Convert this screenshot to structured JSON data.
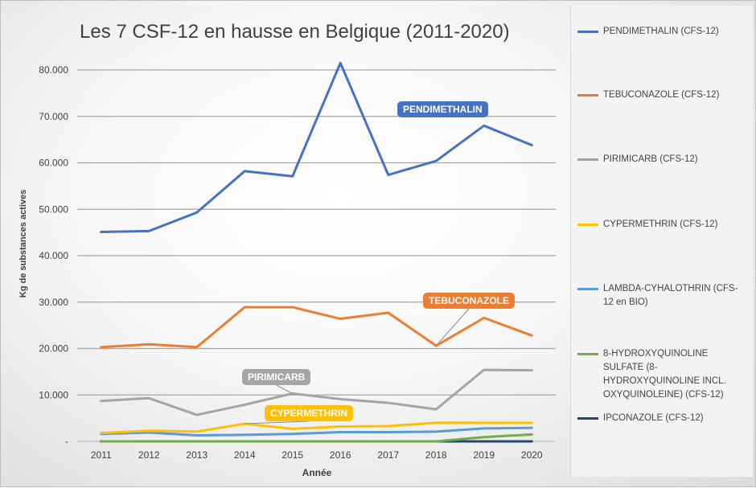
{
  "chart_data": {
    "type": "line",
    "title": "Les 7 CSF-12 en hausse en Belgique (2011-2020)",
    "xlabel": "Année",
    "ylabel": "Kg de substances actives",
    "categories": [
      "2011",
      "2012",
      "2013",
      "2014",
      "2015",
      "2016",
      "2017",
      "2018",
      "2019",
      "2020"
    ],
    "ylim": [
      0,
      80000
    ],
    "yticks": [
      {
        "value": 0,
        "label": "-"
      },
      {
        "value": 10000,
        "label": "10.000"
      },
      {
        "value": 20000,
        "label": "20.000"
      },
      {
        "value": 30000,
        "label": "30.000"
      },
      {
        "value": 40000,
        "label": "40.000"
      },
      {
        "value": 50000,
        "label": "50.000"
      },
      {
        "value": 60000,
        "label": "60.000"
      },
      {
        "value": 70000,
        "label": "70.000"
      },
      {
        "value": 80000,
        "label": "80.000"
      }
    ],
    "grid": true,
    "legend": "right",
    "series": [
      {
        "name": "PENDIMETHALIN (CFS-12)",
        "color": "#4472C4",
        "values": [
          45100,
          45300,
          49300,
          58200,
          57100,
          81500,
          57400,
          60400,
          68000,
          63800
        ]
      },
      {
        "name": "TEBUCONAZOLE (CFS-12)",
        "color": "#ED7D31",
        "values": [
          20300,
          20900,
          20300,
          28900,
          28900,
          26400,
          27700,
          20600,
          26600,
          22800
        ]
      },
      {
        "name": "PIRIMICARB (CFS-12)",
        "color": "#A5A5A5",
        "values": [
          8700,
          9300,
          5700,
          7900,
          10300,
          9100,
          8300,
          6900,
          15400,
          15300
        ]
      },
      {
        "name": "CYPERMETHRIN (CFS-12)",
        "color": "#FFC000",
        "values": [
          1800,
          2300,
          2100,
          3800,
          2700,
          3200,
          3300,
          4000,
          4000,
          4000
        ]
      },
      {
        "name": "LAMBDA-CYHALOTHRIN (CFS-12 en BIO)",
        "color": "#5B9BD5",
        "values": [
          1600,
          1900,
          1300,
          1400,
          1600,
          2000,
          2000,
          2100,
          2800,
          2900
        ]
      },
      {
        "name": "8-HYDROXYQUINOLINE SULFATE (8-HYDROXYQUINOLINE INCL. OXYQUINOLEINE) (CFS-12)",
        "color": "#70AD47",
        "values": [
          0,
          0,
          0,
          0,
          0,
          0,
          0,
          0,
          900,
          1500
        ]
      },
      {
        "name": "IPCONAZOLE (CFS-12)",
        "color": "#264478",
        "values": [
          0,
          0,
          0,
          0,
          0,
          0,
          0,
          0,
          0,
          0
        ]
      }
    ],
    "annotations": [
      {
        "text": "PENDIMETHALIN",
        "color": "#4472C4"
      },
      {
        "text": "TEBUCONAZOLE",
        "color": "#ED7D31",
        "pointer_x": "2018",
        "pointer_y": 20600
      },
      {
        "text": "PIRIMICARB",
        "color": "#A5A5A5",
        "pointer_x": "2015",
        "pointer_y": 10300
      },
      {
        "text": "CYPERMETHRIN",
        "color": "#FFC000",
        "pointer_x": "2014",
        "pointer_y": 3800
      }
    ]
  }
}
